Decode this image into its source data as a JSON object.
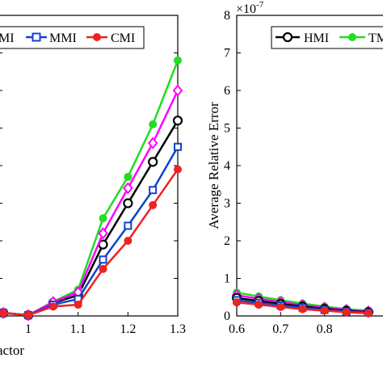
{
  "chart_data": [
    {
      "type": "line",
      "xlabel": "actor",
      "ylabel": "",
      "xlim": [
        0.94,
        1.3
      ],
      "ylim": [
        0,
        8
      ],
      "xticks": [
        1,
        1.1,
        1.2,
        1.3
      ],
      "xtick_labels": [
        "1",
        "1.1",
        "1.2",
        "1.3"
      ],
      "grid": false,
      "legend_position": "top",
      "legend_labels": [
        "MI",
        "MMI",
        "CMI"
      ],
      "x": [
        0.95,
        1.0,
        1.05,
        1.1,
        1.15,
        1.2,
        1.25,
        1.3
      ],
      "series": [
        {
          "name": "HMI",
          "color": "#000000",
          "marker": "circle",
          "values": [
            0.08,
            0.02,
            0.35,
            0.55,
            1.9,
            3.0,
            4.1,
            5.2
          ]
        },
        {
          "name": "TMI",
          "color": "#22dd22",
          "marker": "circle",
          "values": [
            0.08,
            0.02,
            0.38,
            0.7,
            2.6,
            3.7,
            5.1,
            6.8
          ]
        },
        {
          "name": "",
          "color": "#ff00ff",
          "marker": "diamond",
          "values": [
            0.08,
            0.02,
            0.37,
            0.63,
            2.2,
            3.4,
            4.6,
            6.0
          ]
        },
        {
          "name": "MMI",
          "color": "#1144cc",
          "marker": "square",
          "values": [
            0.08,
            0.02,
            0.3,
            0.45,
            1.5,
            2.4,
            3.35,
            4.5
          ]
        },
        {
          "name": "CMI",
          "color": "#ee2222",
          "marker": "circle",
          "values": [
            0.08,
            0.02,
            0.25,
            0.3,
            1.25,
            2.0,
            2.95,
            3.9
          ]
        }
      ]
    },
    {
      "type": "line",
      "xlabel": "",
      "ylabel": "Average Relative Error",
      "y_multiplier": "×10",
      "y_exponent": "-7",
      "xlim": [
        0.6,
        0.95
      ],
      "ylim": [
        0,
        8
      ],
      "xticks": [
        0.6,
        0.7,
        0.8
      ],
      "xtick_labels": [
        "0.6",
        "0.7",
        "0.8"
      ],
      "yticks": [
        0,
        1,
        2,
        3,
        4,
        5,
        6,
        7,
        8
      ],
      "ytick_labels": [
        "0",
        "1",
        "2",
        "3",
        "4",
        "5",
        "6",
        "7",
        "8"
      ],
      "grid": false,
      "legend_position": "top",
      "legend_labels": [
        "HMI",
        "TM"
      ],
      "x": [
        0.6,
        0.65,
        0.7,
        0.75,
        0.8,
        0.85,
        0.9
      ],
      "series": [
        {
          "name": "TMI",
          "color": "#22dd22",
          "marker": "circle",
          "values": [
            0.62,
            0.52,
            0.42,
            0.33,
            0.25,
            0.18,
            0.14
          ]
        },
        {
          "name": "",
          "color": "#ff00ff",
          "marker": "diamond",
          "values": [
            0.55,
            0.46,
            0.37,
            0.29,
            0.22,
            0.16,
            0.12
          ]
        },
        {
          "name": "HMI",
          "color": "#000000",
          "marker": "circle",
          "values": [
            0.48,
            0.4,
            0.32,
            0.25,
            0.19,
            0.14,
            0.1
          ]
        },
        {
          "name": "",
          "color": "#1144cc",
          "marker": "square",
          "values": [
            0.42,
            0.35,
            0.28,
            0.22,
            0.16,
            0.12,
            0.09
          ]
        },
        {
          "name": "",
          "color": "#ee2222",
          "marker": "circle",
          "values": [
            0.36,
            0.3,
            0.24,
            0.18,
            0.14,
            0.1,
            0.07
          ]
        }
      ]
    }
  ]
}
